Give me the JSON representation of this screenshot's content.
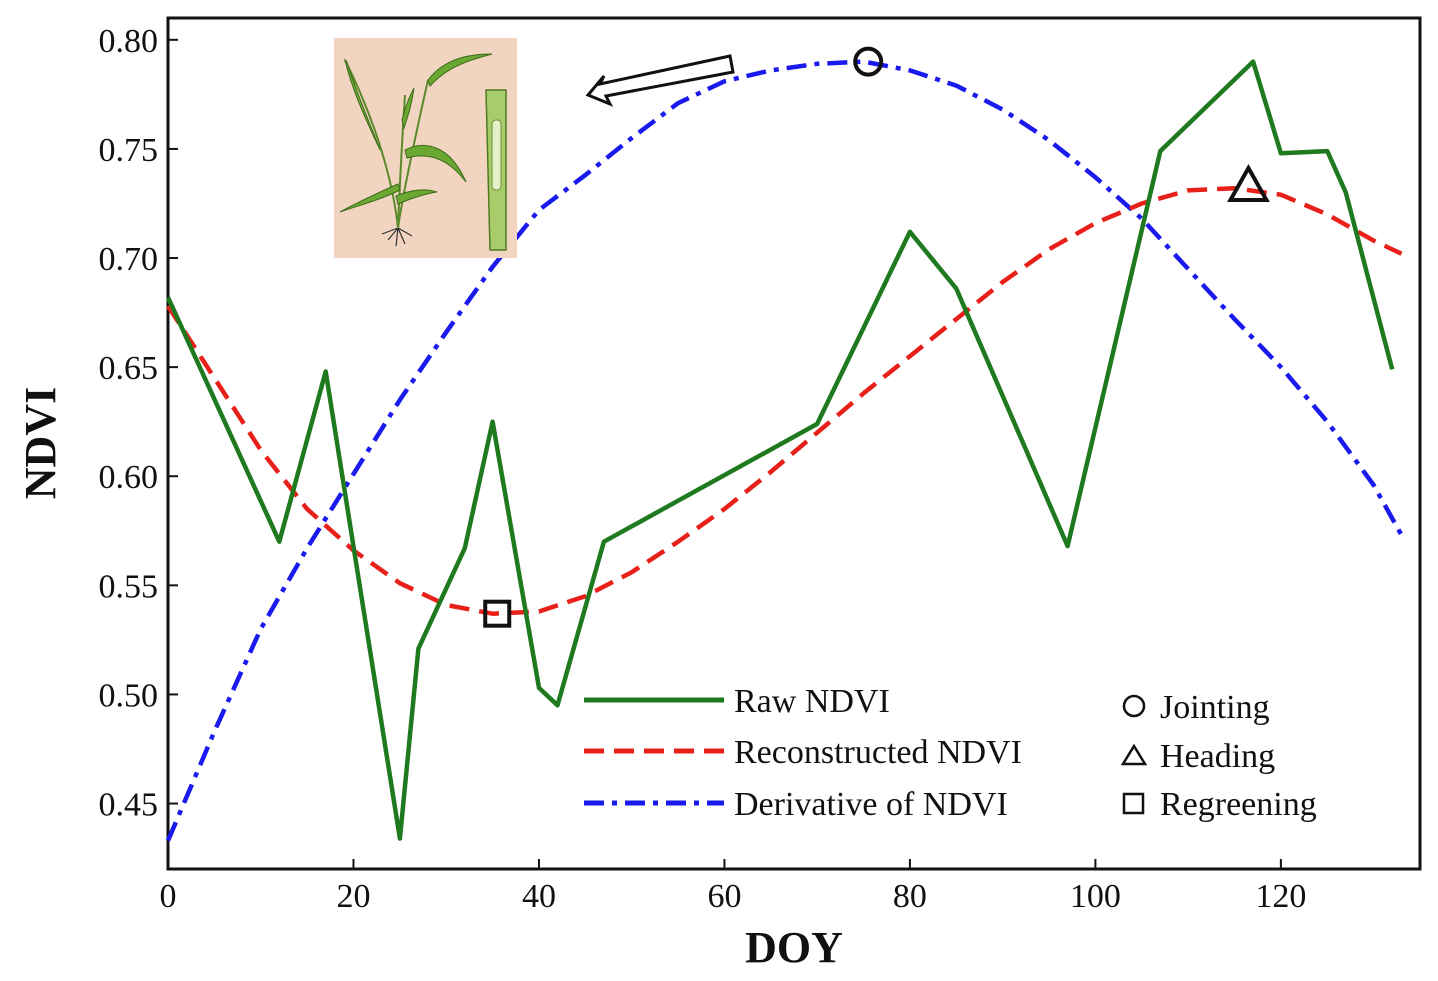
{
  "chart_data": {
    "type": "line",
    "title": "",
    "xlabel": "DOY",
    "ylabel": "NDVI",
    "xlim": [
      0,
      135
    ],
    "ylim": [
      0.42,
      0.81
    ],
    "xticks": [
      0,
      20,
      40,
      60,
      80,
      100,
      120
    ],
    "yticks": [
      0.45,
      0.5,
      0.55,
      0.6,
      0.65,
      0.7,
      0.75,
      0.8
    ],
    "xtick_labels": [
      "0",
      "20",
      "40",
      "60",
      "80",
      "100",
      "120"
    ],
    "ytick_labels": [
      "0.45",
      "0.50",
      "0.55",
      "0.60",
      "0.65",
      "0.70",
      "0.75",
      "0.80"
    ],
    "grid": false,
    "legend_position": "bottom-right",
    "series": [
      {
        "name": "Raw NDVI",
        "color": "#1f7a1f",
        "style": "solid",
        "x": [
          0,
          12,
          17,
          25,
          27,
          32,
          35,
          40,
          42,
          47,
          70,
          80,
          85,
          97,
          107,
          117,
          120,
          125,
          127,
          132
        ],
        "y": [
          0.682,
          0.57,
          0.648,
          0.434,
          0.521,
          0.567,
          0.625,
          0.503,
          0.495,
          0.57,
          0.624,
          0.712,
          0.686,
          0.568,
          0.749,
          0.79,
          0.748,
          0.749,
          0.73,
          0.649
        ]
      },
      {
        "name": "Reconstructed NDVI",
        "color": "#e8201a",
        "style": "dashed",
        "x": [
          0,
          5,
          10,
          15,
          20,
          25,
          30,
          35,
          40,
          45,
          50,
          55,
          60,
          65,
          70,
          75,
          80,
          85,
          90,
          95,
          100,
          105,
          110,
          115,
          120,
          125,
          130,
          133
        ],
        "y": [
          0.678,
          0.645,
          0.612,
          0.585,
          0.566,
          0.551,
          0.541,
          0.537,
          0.538,
          0.545,
          0.556,
          0.57,
          0.585,
          0.602,
          0.62,
          0.638,
          0.655,
          0.672,
          0.689,
          0.704,
          0.716,
          0.725,
          0.731,
          0.732,
          0.729,
          0.72,
          0.708,
          0.702
        ]
      },
      {
        "name": "Derivative of NDVI",
        "color": "#1a1aee",
        "style": "dashdot",
        "x": [
          0,
          5,
          10,
          15,
          20,
          25,
          30,
          35,
          40,
          45,
          50,
          55,
          60,
          65,
          70,
          75,
          80,
          85,
          90,
          95,
          100,
          105,
          110,
          115,
          120,
          125,
          130,
          133
        ],
        "y": [
          0.433,
          0.483,
          0.53,
          0.567,
          0.601,
          0.635,
          0.666,
          0.696,
          0.722,
          0.738,
          0.755,
          0.771,
          0.781,
          0.786,
          0.789,
          0.79,
          0.786,
          0.779,
          0.768,
          0.754,
          0.737,
          0.718,
          0.695,
          0.672,
          0.65,
          0.625,
          0.596,
          0.573
        ]
      }
    ],
    "markers": [
      {
        "name": "Jointing",
        "shape": "circle",
        "x": 75.5,
        "y": 0.79
      },
      {
        "name": "Heading",
        "shape": "triangle",
        "x": 116.5,
        "y": 0.733
      },
      {
        "name": "Regreening",
        "shape": "square",
        "x": 35.5,
        "y": 0.537
      }
    ],
    "legend_lines": [
      "Raw NDVI",
      "Reconstructed NDVI",
      "Derivative of NDVI"
    ],
    "legend_markers": [
      "Jointing",
      "Heading",
      "Regreening"
    ],
    "inset": {
      "subject": "wheat-plant-jointing-illustration",
      "background_color": "#f2d5c0"
    }
  }
}
